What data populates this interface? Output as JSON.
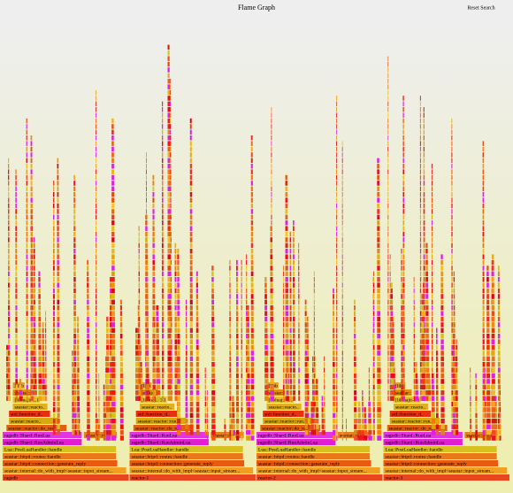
{
  "title": "Flame Graph",
  "reset": "Reset Search",
  "columns": [
    {
      "frames": [
        "ragedb",
        "seastar::internal::do_with_impl<seastar::input_stream...",
        "seastar::httpd::connection::generate_reply",
        "seastar::httpd::routes::handle",
        "Lua::PostLuaHandler::handle",
        "ragedb::Shard::RunAdminLua",
        "ragedb::Shard::RunLua",
        "seastar::reactor::do_run",
        "seastar::reacto..",
        "std::function_d..",
        "seastar::reacto..",
        "[libluajit-5.1.so.2...",
        "seastar::r..",
        "[libbu.."
      ],
      "side": "seastar::react.."
    },
    {
      "frames": [
        "reactor-1",
        "seastar::internal::do_with_impl<seastar::input_stream...",
        "seastar::httpd::connection::generate_reply",
        "seastar::httpd::routes::handle",
        "Lua::PostLuaHandler::handle",
        "ragedb::Shard::RunAdminLua",
        "ragedb::Shard::RunLua",
        "seastar::reactor::do_run",
        "seastar::reactor::run..",
        "std::function_d..",
        "seastar::reacto..",
        "[libluajit-5.1.so.2...",
        "seastar::r..",
        "[libbu.."
      ],
      "side": "seastar::rea.."
    },
    {
      "frames": [
        "reactor-2",
        "seastar::internal::do_with_impl<seastar::input_stream...",
        "seastar::httpd::connection::generate_reply",
        "seastar::httpd::routes::handle",
        "Lua::PostLuaHandler::handle",
        "ragedb::Shard::RunAdminLua",
        "ragedb::Shard::RunLua",
        "seastar::reactor::do_run",
        "seastar::reactor::run..",
        "std::function_d..",
        "seastar::reacto..",
        "[libluajit-5.1.so.2...",
        "seastar::r..",
        "[libbu.."
      ],
      "side": "seastar::react.."
    },
    {
      "frames": [
        "reactor-3",
        "seastar::internal::do_with_impl<seastar::input_stream...",
        "seastar::httpd::connection::generate_reply",
        "seastar::httpd::routes::handle",
        "Lua::PostLuaHandler::handle",
        "ragedb::Shard::RunAdminLua",
        "ragedb::Shard::RunLua",
        "seastar::reactor::do_run",
        "seastar::reactor::run..",
        "std::function_d..",
        "seastar::reacto..",
        "[libluajit-5.1.so.2...",
        "seastar::r..",
        "[libbu.."
      ],
      "side": "seastar::react.."
    }
  ]
}
